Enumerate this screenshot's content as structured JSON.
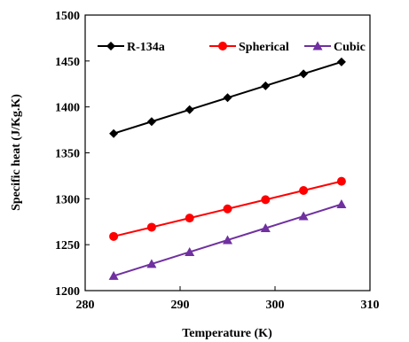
{
  "chart_data": {
    "type": "line",
    "xlabel": "Temperature (K)",
    "ylabel": "Specific heat (J/Kg.K)",
    "xlim": [
      280,
      310
    ],
    "ylim": [
      1200,
      1500
    ],
    "x_ticks": [
      "280",
      "290",
      "300",
      "310"
    ],
    "y_ticks": [
      "1200",
      "1250",
      "1300",
      "1350",
      "1400",
      "1450",
      "1500"
    ],
    "grid": false,
    "legend_position": "top",
    "x": [
      283,
      287,
      291,
      295,
      299,
      303,
      307
    ],
    "series": [
      {
        "name": "R-134a",
        "color": "#000000",
        "marker": "diamond",
        "values": [
          1371,
          1384,
          1397,
          1410,
          1423,
          1436,
          1449
        ]
      },
      {
        "name": "Spherical",
        "color": "#ff0000",
        "marker": "circle",
        "values": [
          1259,
          1269,
          1279,
          1289,
          1299,
          1309,
          1319
        ]
      },
      {
        "name": "Cubic",
        "color": "#7030a0",
        "marker": "triangle",
        "values": [
          1216,
          1229,
          1242,
          1255,
          1268,
          1281,
          1294
        ]
      }
    ]
  }
}
